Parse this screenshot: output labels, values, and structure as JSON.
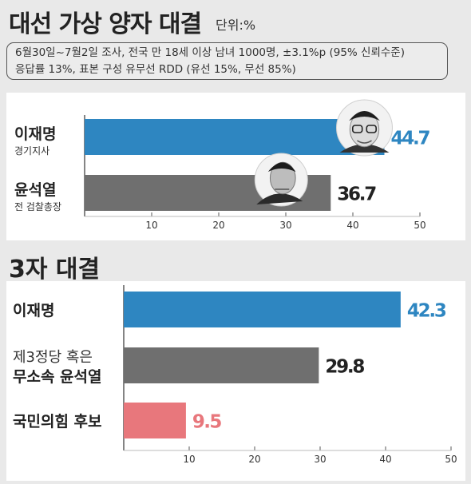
{
  "header": {
    "title": "대선 가상 양자 대결",
    "unit": "단위:%"
  },
  "note": {
    "line1": "6월30일~7월2일 조사, 전국 만 18세 이상 남녀 1000명, ±3.1%p (95% 신뢰수준)",
    "line2": "응답률 13%, 표본 구성 유무선 RDD (유선 15%, 무선 85%)"
  },
  "section2": {
    "title": "3자 대결"
  },
  "colors": {
    "blue": "#2e86c1",
    "gray": "#6f6f6f",
    "pink": "#e8777c"
  },
  "chart_data": [
    {
      "type": "bar",
      "orientation": "horizontal",
      "title": "대선 가상 양자 대결",
      "categories": [
        "이재명",
        "윤석열"
      ],
      "sublabels": [
        "경기지사",
        "전 검찰총장"
      ],
      "values": [
        44.7,
        36.7
      ],
      "value_labels": [
        "44.7",
        "36.7"
      ],
      "colors": [
        "#2e86c1",
        "#6f6f6f"
      ],
      "xlim": [
        0,
        50
      ],
      "xticks": [
        "10",
        "20",
        "30",
        "40",
        "50"
      ],
      "portraits": [
        "portrait-lee",
        "portrait-yoon"
      ]
    },
    {
      "type": "bar",
      "orientation": "horizontal",
      "title": "3자 대결",
      "categories": [
        [
          "이재명"
        ],
        [
          "제3정당 혹은",
          "무소속 윤석열"
        ],
        [
          "국민의힘 후보"
        ]
      ],
      "values": [
        42.3,
        29.8,
        9.5
      ],
      "value_labels": [
        "42.3",
        "29.8",
        "9.5"
      ],
      "colors": [
        "#2e86c1",
        "#6f6f6f",
        "#e8777c"
      ],
      "xlim": [
        0,
        50
      ],
      "xticks": [
        "10",
        "20",
        "30",
        "40",
        "50"
      ]
    }
  ]
}
